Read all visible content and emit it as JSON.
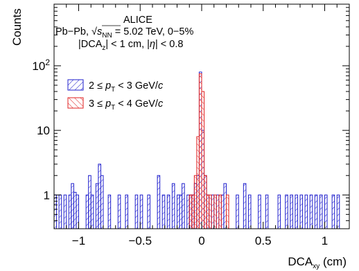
{
  "chart_data": {
    "type": "bar",
    "xlabel": "DCA",
    "xlabel_sub": "xy",
    "xlabel_unit": " (cm)",
    "ylabel": "Counts",
    "x_range": [
      -1.2,
      1.2
    ],
    "y_range": [
      0.3,
      900
    ],
    "y_scale": "log",
    "x_ticks": [
      -1,
      -0.5,
      0,
      0.5,
      1
    ],
    "x_tick_labels": [
      "−1",
      "−0.5",
      "0",
      "0.5",
      "1"
    ],
    "y_ticks": [
      1,
      10,
      100
    ],
    "y_tick_labels": [
      {
        "base": "1",
        "exp": ""
      },
      {
        "base": "10",
        "exp": ""
      },
      {
        "base": "10",
        "exp": "2"
      }
    ],
    "annotation": {
      "line1": "ALICE",
      "line2_pre": "Pb−Pb, ",
      "line2_sqrt": "s",
      "line2_sub": "NN",
      "line2_post": " = 5.02 TeV, 0−5%",
      "line3_a": "|DCA",
      "line3_sub": "z",
      "line3_b": "| < 1 cm, |",
      "line3_eta": "η",
      "line3_c": "| < 0.8"
    },
    "bin_width": 0.02,
    "series": [
      {
        "name": "2 ≤ p_T < 3 GeV/c",
        "label_pre": "2 ≤ ",
        "label_p": "p",
        "label_sub": "T",
        "label_post": " < 3 GeV/",
        "label_c": "c",
        "color": "#1f1fcc",
        "hatch": "forward",
        "points": [
          [
            -1.19,
            1
          ],
          [
            -1.15,
            1
          ],
          [
            -1.11,
            1
          ],
          [
            -1.07,
            1
          ],
          [
            -1.05,
            1.5
          ],
          [
            -1.03,
            1.1
          ],
          [
            -1.01,
            1
          ],
          [
            -0.93,
            1
          ],
          [
            -0.91,
            2
          ],
          [
            -0.89,
            1
          ],
          [
            -0.85,
            1.5
          ],
          [
            -0.83,
            3
          ],
          [
            -0.81,
            2
          ],
          [
            -0.75,
            1
          ],
          [
            -0.67,
            1
          ],
          [
            -0.61,
            1
          ],
          [
            -0.53,
            1
          ],
          [
            -0.49,
            1
          ],
          [
            -0.43,
            1
          ],
          [
            -0.35,
            2
          ],
          [
            -0.31,
            1
          ],
          [
            -0.27,
            1
          ],
          [
            -0.23,
            1.5
          ],
          [
            -0.19,
            1
          ],
          [
            -0.17,
            1
          ],
          [
            -0.15,
            1.5
          ],
          [
            -0.11,
            1
          ],
          [
            -0.09,
            1
          ],
          [
            -0.07,
            1
          ],
          [
            -0.05,
            1.5
          ],
          [
            -0.03,
            2
          ],
          [
            -0.01,
            80
          ],
          [
            0.01,
            10
          ],
          [
            0.03,
            2
          ],
          [
            0.05,
            1
          ],
          [
            0.09,
            1
          ],
          [
            0.13,
            1
          ],
          [
            0.17,
            1
          ],
          [
            0.19,
            1.5
          ],
          [
            0.29,
            1
          ],
          [
            0.35,
            1.5
          ],
          [
            0.39,
            1
          ],
          [
            0.47,
            1
          ],
          [
            0.53,
            1
          ],
          [
            0.63,
            1
          ],
          [
            0.69,
            1
          ],
          [
            0.73,
            1
          ],
          [
            0.77,
            1
          ],
          [
            0.81,
            1
          ],
          [
            0.85,
            1
          ],
          [
            0.89,
            1
          ],
          [
            0.93,
            1
          ],
          [
            0.97,
            1
          ],
          [
            1.01,
            1
          ],
          [
            1.07,
            1
          ],
          [
            1.11,
            1
          ]
        ]
      },
      {
        "name": "3 ≤ p_T < 4 GeV/c",
        "label_pre": "3 ≤ ",
        "label_p": "p",
        "label_sub": "T",
        "label_post": " < 4 GeV/",
        "label_c": "c",
        "color": "#e02020",
        "hatch": "back",
        "points": [
          [
            -0.09,
            1
          ],
          [
            -0.07,
            1
          ],
          [
            -0.05,
            2
          ],
          [
            -0.03,
            8
          ],
          [
            -0.01,
            75
          ],
          [
            0.01,
            40
          ],
          [
            0.03,
            2
          ],
          [
            0.05,
            1
          ],
          [
            0.07,
            1
          ],
          [
            0.11,
            1
          ],
          [
            0.15,
            1
          ],
          [
            0.21,
            1
          ]
        ]
      }
    ]
  }
}
